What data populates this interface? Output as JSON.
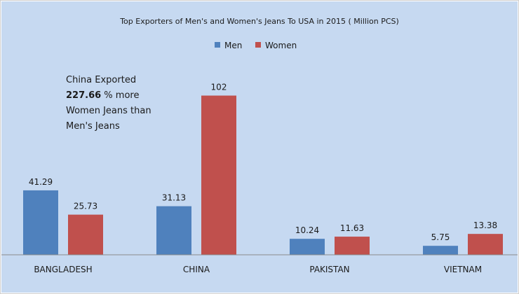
{
  "chart_data": {
    "type": "bar",
    "title": "Top Exporters of Men's and Women's Jeans To USA in 2015 ( Million PCS)",
    "categories": [
      "BANGLADESH",
      "CHINA",
      "PAKISTAN",
      "VIETNAM"
    ],
    "series": [
      {
        "name": "Men",
        "color": "#4f81bd",
        "values": [
          41.29,
          31.13,
          10.24,
          5.75
        ],
        "labels": [
          "41.29",
          "31.13",
          "10.24",
          "5.75"
        ]
      },
      {
        "name": "Women",
        "color": "#c0504d",
        "values": [
          25.73,
          102,
          11.63,
          13.38
        ],
        "labels": [
          "25.73",
          "102",
          "11.63",
          "13.38"
        ]
      }
    ],
    "ylim": [
      0,
      120
    ],
    "grid": false,
    "legend": "top-center",
    "annotation": {
      "line1": "China Exported",
      "line2_bold": "227.66",
      "line2_rest": " % more",
      "line3": "Women Jeans than",
      "line4": "Men's Jeans"
    }
  },
  "colors": {
    "plot_background": "#c6d9f1",
    "frame_background": "#ffffff"
  }
}
